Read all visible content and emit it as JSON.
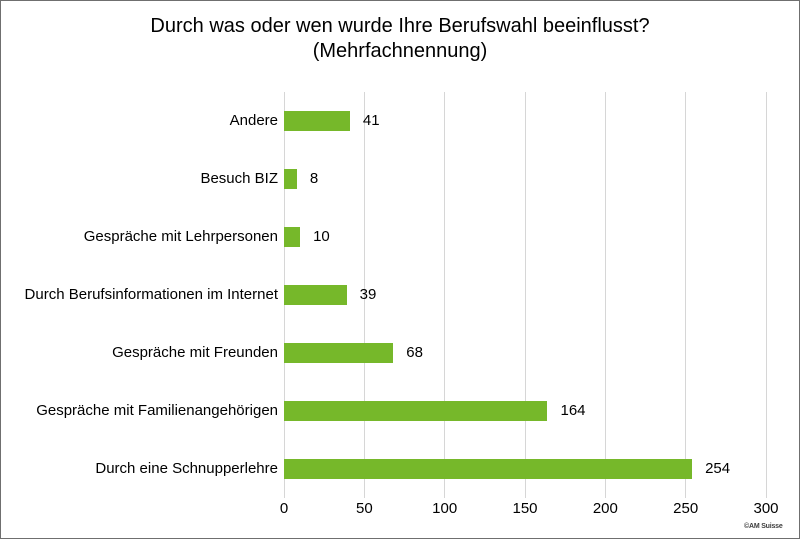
{
  "title": {
    "line1": "Durch was oder wen wurde Ihre Berufswahl beeinflusst?",
    "line2": "(Mehrfachnennung)"
  },
  "chart_data": {
    "type": "bar",
    "orientation": "horizontal",
    "title": "Durch was oder wen wurde Ihre Berufswahl beeinflusst? (Mehrfachnennung)",
    "categories": [
      "Andere",
      "Besuch BIZ",
      "Gespräche mit Lehrpersonen",
      "Durch Berufsinformationen im Internet",
      "Gespräche mit Freunden",
      "Gespräche mit Familienangehörigen",
      "Durch eine Schnupperlehre"
    ],
    "values": [
      41,
      8,
      10,
      39,
      68,
      164,
      254
    ],
    "x_ticks": [
      0,
      50,
      100,
      150,
      200,
      250,
      300
    ],
    "xlim": [
      0,
      300
    ],
    "xlabel": "",
    "ylabel": "",
    "grid": true,
    "legend": "none",
    "value_labels": true,
    "colors": {
      "bar": "#76b82a",
      "gridline": "#d6d6d6",
      "text": "#000000",
      "frame_border": "#6f6f6f"
    }
  },
  "footer": {
    "copyright": "©AM Suisse"
  }
}
